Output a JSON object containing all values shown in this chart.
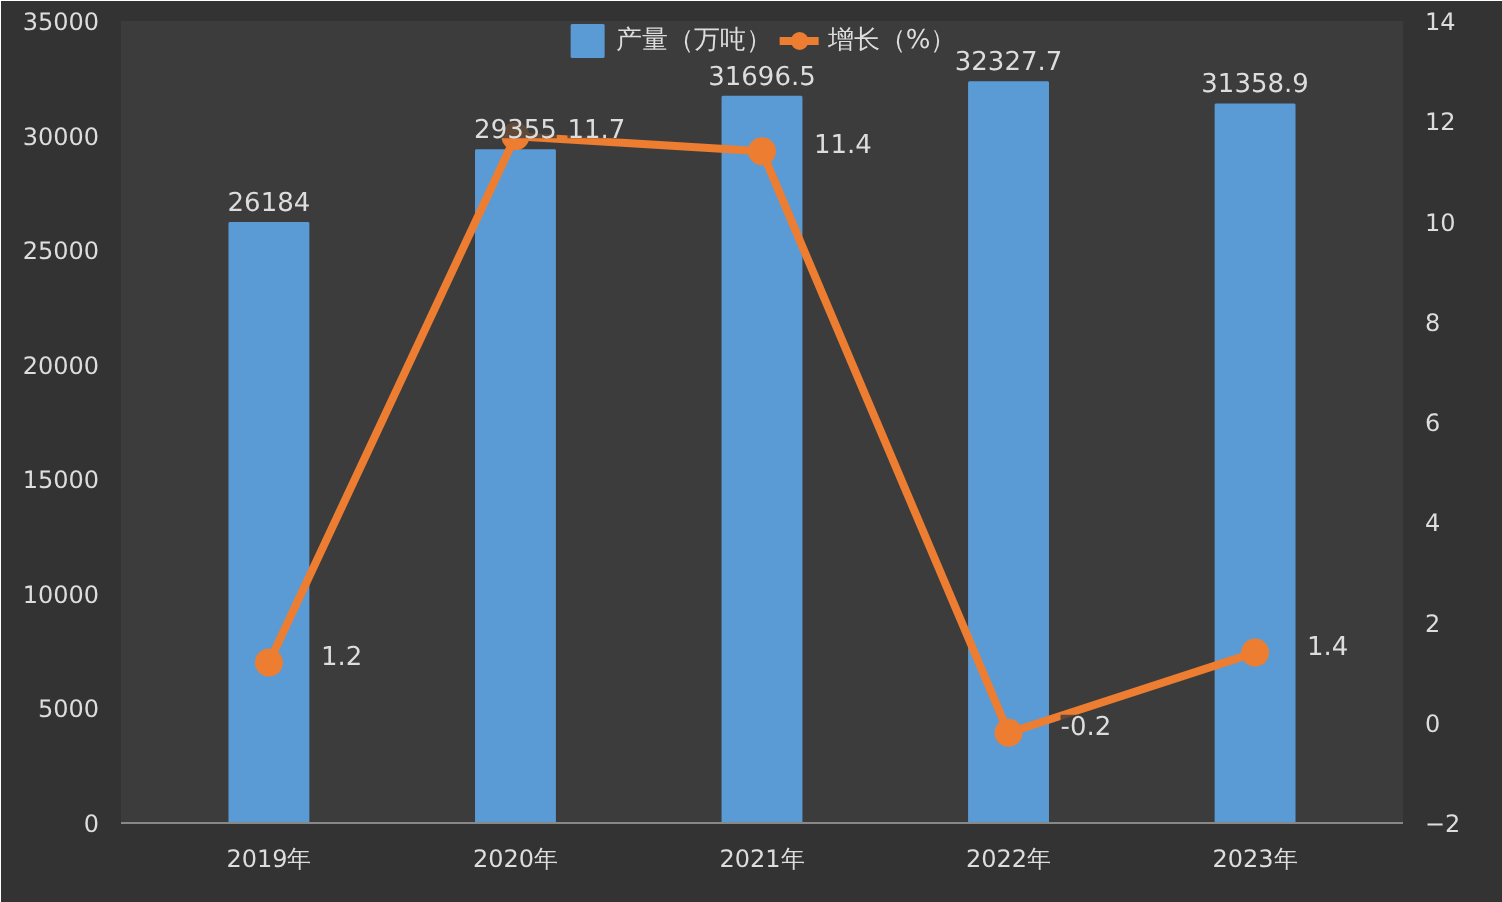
{
  "chart_data": {
    "type": "bar",
    "categories": [
      "2019年",
      "2020年",
      "2021年",
      "2022年",
      "2023年"
    ],
    "series": [
      {
        "name": "产量（万吨）",
        "color": "#5b9bd5",
        "values": [
          26184,
          29355,
          31696.5,
          32327.7,
          31358.9
        ]
      },
      {
        "name": "增长（%）",
        "type": "line",
        "axis": "y2",
        "color": "#ed7d31",
        "marker": "circle",
        "values": [
          1.2,
          11.7,
          11.4,
          -0.2,
          1.4
        ]
      }
    ],
    "ylim": [
      0,
      35000
    ],
    "yticks": [
      0,
      5000,
      10000,
      15000,
      20000,
      25000,
      30000,
      35000
    ],
    "y2lim": [
      -2,
      14
    ],
    "y2ticks": [
      -2,
      0,
      2,
      4,
      6,
      8,
      10,
      12,
      14
    ],
    "data_labels": true,
    "legend": "top",
    "grid": false
  }
}
